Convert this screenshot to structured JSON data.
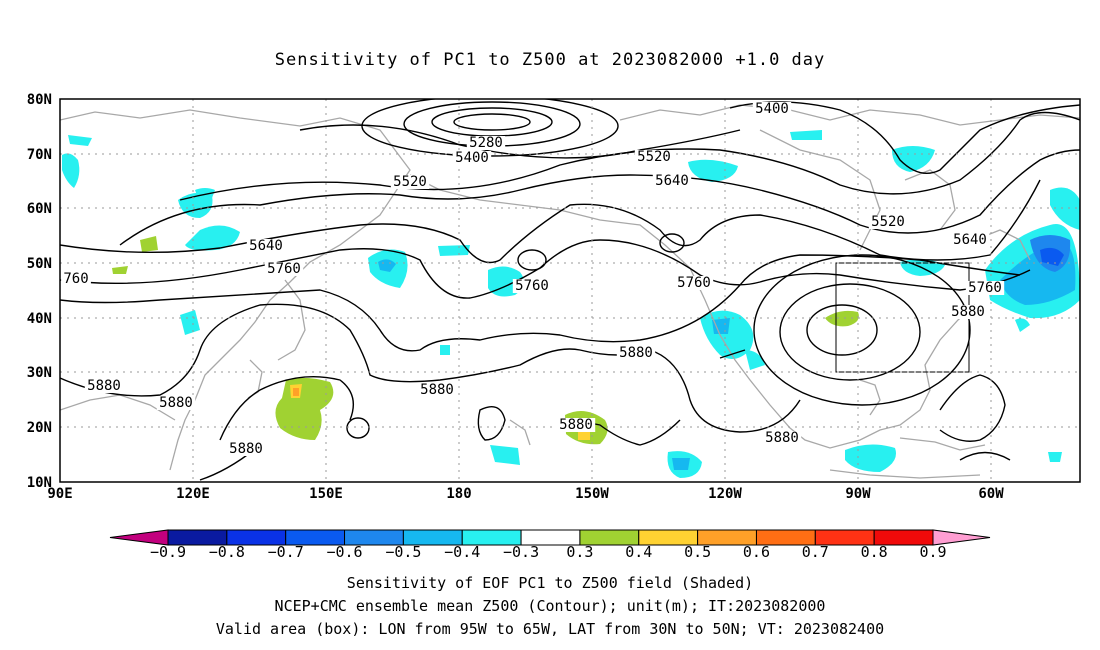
{
  "title": "Sensitivity of PC1 to Z500 at 2023082000 +1.0 day",
  "map": {
    "lat_labels": [
      "80N",
      "70N",
      "60N",
      "50N",
      "40N",
      "30N",
      "20N",
      "10N"
    ],
    "lon_labels": [
      "90E",
      "120E",
      "150E",
      "180",
      "150W",
      "120W",
      "90W",
      "60W"
    ],
    "contour_labels": [
      {
        "text": "5280"
      },
      {
        "text": "5400"
      },
      {
        "text": "5400"
      },
      {
        "text": "5520"
      },
      {
        "text": "5520"
      },
      {
        "text": "5520"
      },
      {
        "text": "5640"
      },
      {
        "text": "5640"
      },
      {
        "text": "5640"
      },
      {
        "text": "5760"
      },
      {
        "text": "5760"
      },
      {
        "text": "5760"
      },
      {
        "text": "5760"
      },
      {
        "text": "760"
      },
      {
        "text": "5880"
      },
      {
        "text": "5880"
      },
      {
        "text": "5880"
      },
      {
        "text": "5880"
      },
      {
        "text": "5880"
      },
      {
        "text": "5880"
      },
      {
        "text": "5880"
      },
      {
        "text": "5880"
      }
    ],
    "valid_box": {
      "lon_from": "95W",
      "lon_to": "65W",
      "lat_from": "30N",
      "lat_to": "50N"
    }
  },
  "colorbar": {
    "labels": [
      "-0.9",
      "-0.8",
      "-0.7",
      "-0.6",
      "-0.5",
      "-0.4",
      "-0.3",
      "0.3",
      "0.4",
      "0.5",
      "0.6",
      "0.7",
      "0.8",
      "0.9"
    ],
    "colors": [
      "#c2007e",
      "#0a1aa0",
      "#0a32e6",
      "#0a5af0",
      "#1e87ee",
      "#16b8f0",
      "#28f0f0",
      "#ffffff",
      "#a0d232",
      "#ffd232",
      "#ffa028",
      "#ff6e14",
      "#ff3214",
      "#f00a0a",
      "#ff9ed2"
    ]
  },
  "captions": [
    "Sensitivity of EOF PC1 to Z500 field (Shaded)",
    "NCEP+CMC ensemble mean Z500 (Contour); unit(m); IT:2023082000",
    "Valid area (box): LON from 95W to 65W, LAT from 30N to 50N; VT: 2023082400"
  ]
}
